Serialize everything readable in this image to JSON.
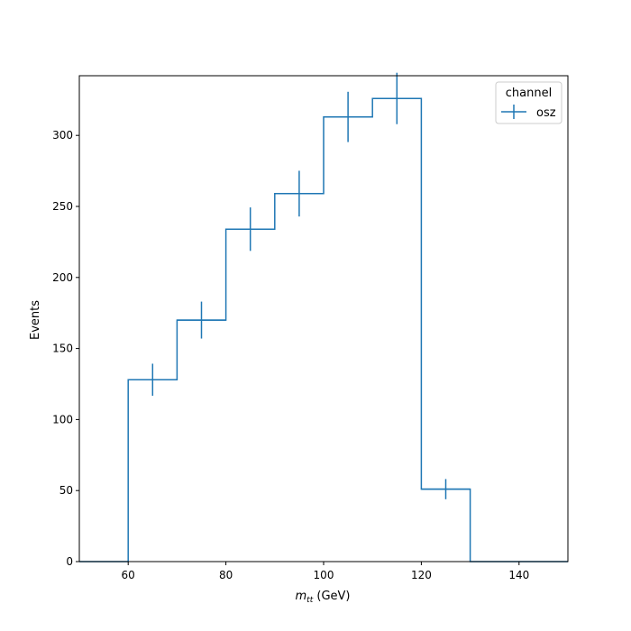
{
  "chart_data": {
    "type": "histogram",
    "xlabel_symbol": "m",
    "xlabel_subscript": "tt",
    "xlabel_unit": " (GeV)",
    "ylabel": "Events",
    "xlim": [
      50,
      150
    ],
    "ylim": [
      0,
      342
    ],
    "x_ticks": [
      60,
      80,
      100,
      120,
      140
    ],
    "y_ticks": [
      0,
      50,
      100,
      150,
      200,
      250,
      300
    ],
    "legend": {
      "title": "channel",
      "placement": "top-right",
      "entries": [
        "osz"
      ]
    },
    "series": [
      {
        "name": "osz",
        "color": "#1f77b4",
        "bin_edges": [
          50,
          60,
          70,
          80,
          90,
          100,
          110,
          120,
          130,
          140,
          150
        ],
        "values": [
          0,
          128,
          170,
          234,
          259,
          313,
          326,
          51,
          0,
          0
        ],
        "errors": [
          0,
          11.3,
          13.0,
          15.3,
          16.1,
          17.7,
          18.1,
          7.1,
          0,
          0
        ]
      }
    ]
  }
}
